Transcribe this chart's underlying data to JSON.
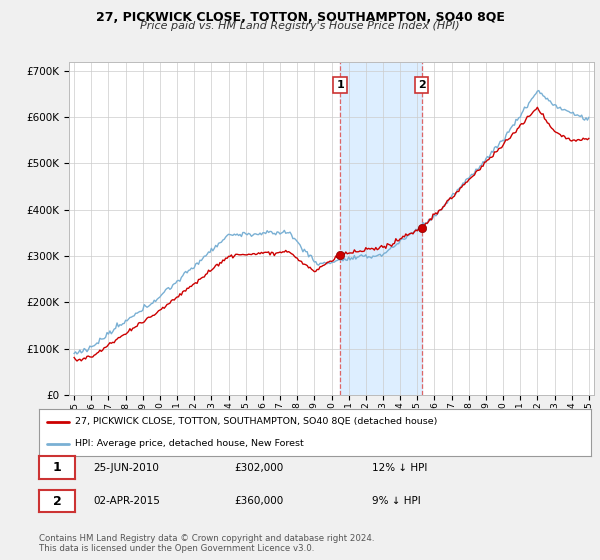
{
  "title": "27, PICKWICK CLOSE, TOTTON, SOUTHAMPTON, SO40 8QE",
  "subtitle": "Price paid vs. HM Land Registry's House Price Index (HPI)",
  "ylabel_ticks": [
    "£0",
    "£100K",
    "£200K",
    "£300K",
    "£400K",
    "£500K",
    "£600K",
    "£700K"
  ],
  "ytick_vals": [
    0,
    100000,
    200000,
    300000,
    400000,
    500000,
    600000,
    700000
  ],
  "ylim": [
    0,
    720000
  ],
  "xlim_start": 1994.7,
  "xlim_end": 2025.3,
  "sale1_year": 2010.5,
  "sale1_price": 302000,
  "sale2_year": 2015.25,
  "sale2_price": 360000,
  "legend_line1": "27, PICKWICK CLOSE, TOTTON, SOUTHAMPTON, SO40 8QE (detached house)",
  "legend_line2": "HPI: Average price, detached house, New Forest",
  "annot1_date": "25-JUN-2010",
  "annot1_price": "£302,000",
  "annot1_hpi": "12% ↓ HPI",
  "annot2_date": "02-APR-2015",
  "annot2_price": "£360,000",
  "annot2_hpi": "9% ↓ HPI",
  "footnote1": "Contains HM Land Registry data © Crown copyright and database right 2024.",
  "footnote2": "This data is licensed under the Open Government Licence v3.0.",
  "color_red": "#cc0000",
  "color_blue": "#7ab0d4",
  "color_highlight": "#ddeeff",
  "color_vline": "#dd6666",
  "background_color": "#f0f0f0",
  "plot_bg": "#ffffff",
  "grid_color": "#cccccc"
}
